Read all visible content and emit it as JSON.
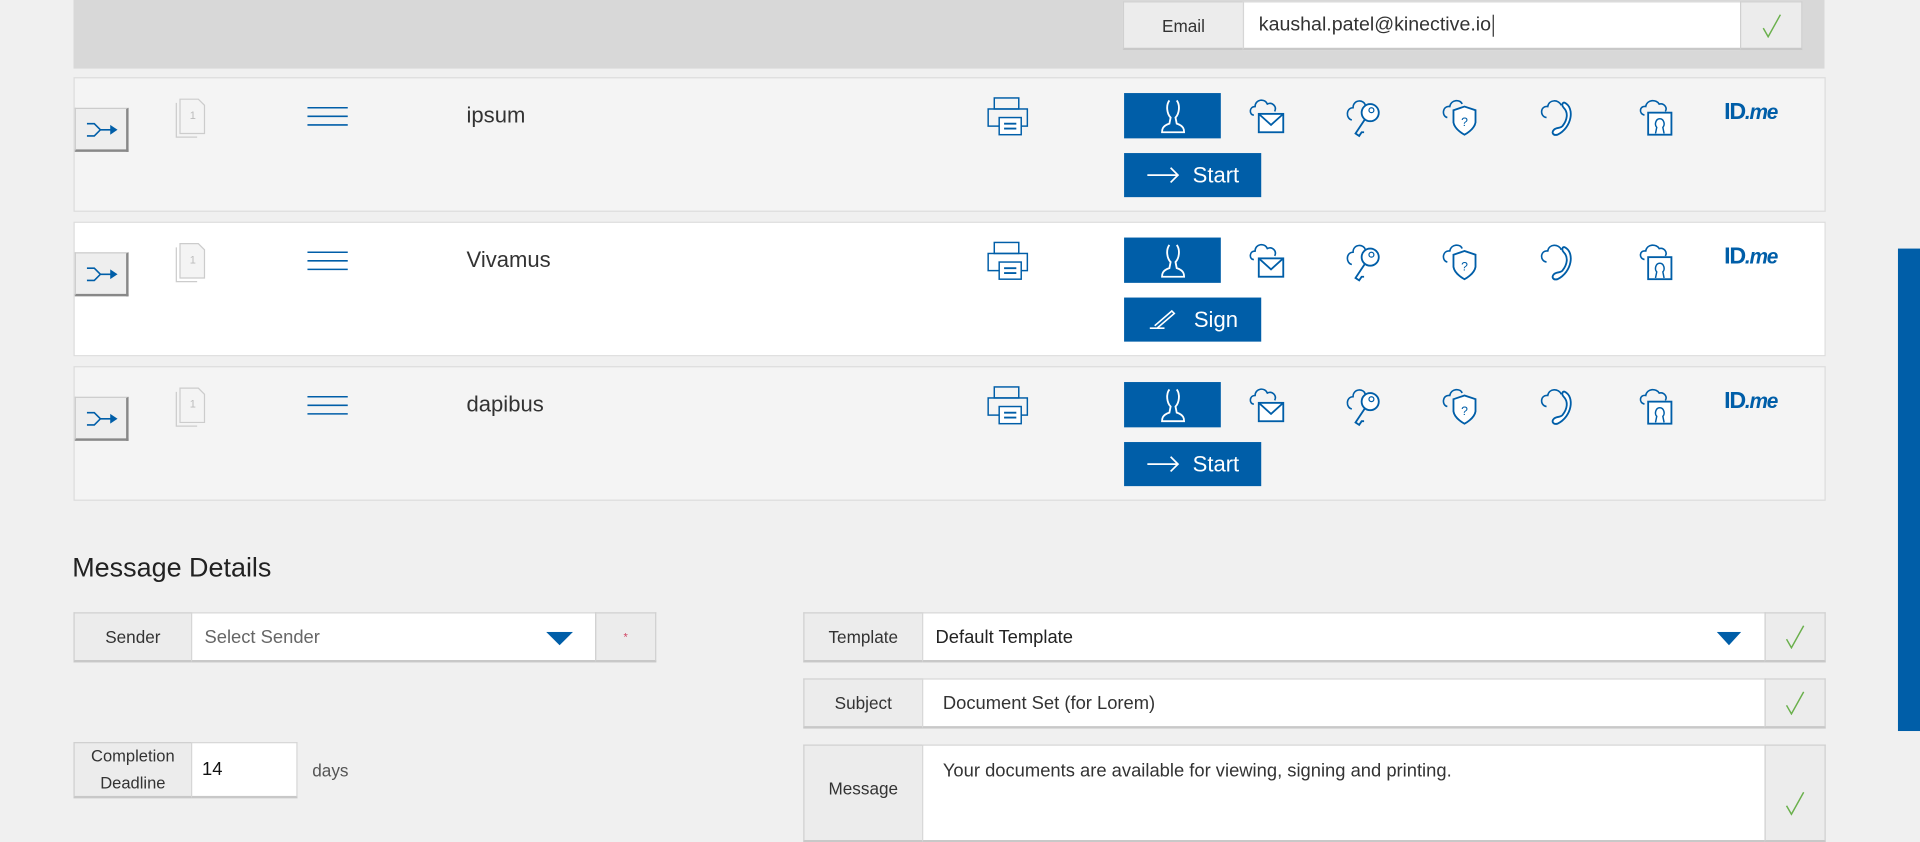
{
  "email": {
    "label": "Email",
    "value": "kaushal.patel@kinective.io"
  },
  "recipients": [
    {
      "name": "ipsum",
      "action": "Start",
      "action_icon": "arrow-right-icon",
      "page_badge": "1"
    },
    {
      "name": "Vivamus",
      "action": "Sign",
      "action_icon": "pen-icon",
      "page_badge": "1"
    },
    {
      "name": "dapibus",
      "action": "Start",
      "action_icon": "arrow-right-icon",
      "page_badge": "1"
    }
  ],
  "auth_icons": [
    "person-icon",
    "cloud-email-icon",
    "cloud-key-icon",
    "cloud-security-question-icon",
    "cloud-phone-icon",
    "cloud-id-photo-icon",
    "idme-logo"
  ],
  "idme": {
    "id": "ID",
    "me": ".me"
  },
  "message_details": {
    "heading": "Message Details",
    "sender": {
      "label": "Sender",
      "placeholder": "Select Sender",
      "required_mark": "*"
    },
    "template": {
      "label": "Template",
      "value": "Default Template"
    },
    "subject": {
      "label": "Subject",
      "value": "Document Set (for Lorem)"
    },
    "message": {
      "label": "Message",
      "value": "Your documents are available for viewing, signing and printing."
    },
    "deadline": {
      "label": "Completion Deadline",
      "value": "14",
      "unit": "days"
    }
  },
  "colors": {
    "accent": "#005ea8",
    "check": "#6ab04c"
  }
}
